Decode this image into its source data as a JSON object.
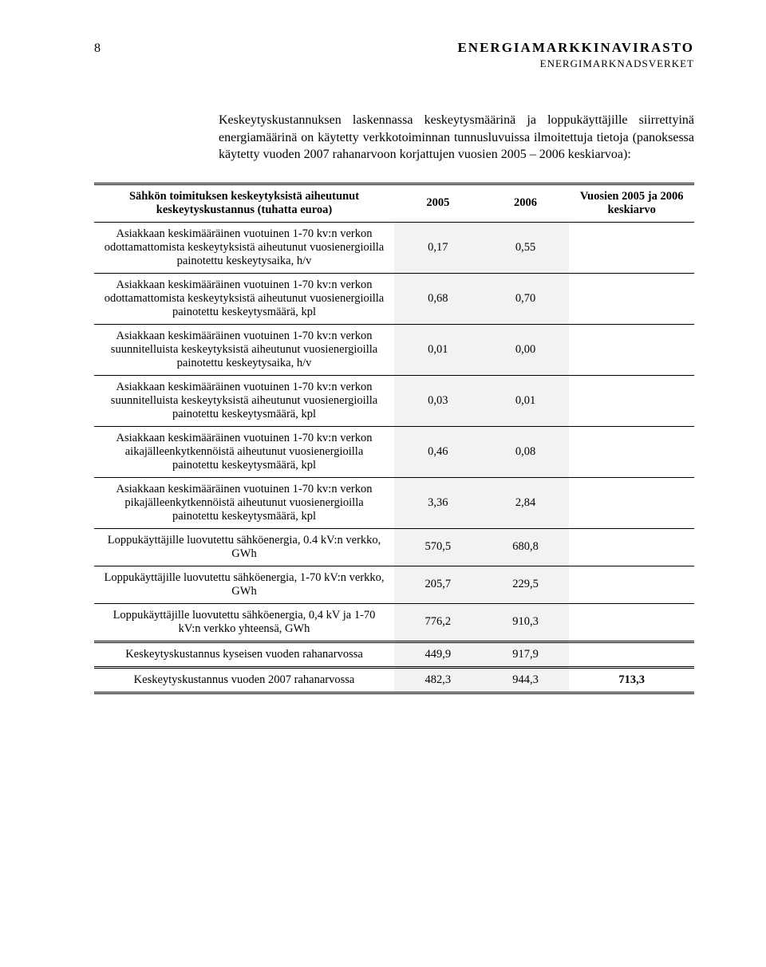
{
  "page_number": "8",
  "header_title": "ENERGIAMARKKINAVIRASTO",
  "header_sub": "ENERGIMARKNADSVERKET",
  "paragraph": "Keskeytyskustannuksen laskennassa keskeytysmäärinä ja loppukäyttäjille siirrettyinä energiamäärinä on käytetty verkkotoiminnan tunnusluvuissa ilmoitettuja tietoja (panoksessa käytetty vuoden 2007 rahanarvoon korjattujen vuosien 2005 – 2006 keskiarvoa):",
  "columns": {
    "c0": "Sähkön toimituksen keskeytyksistä aiheutunut keskeytyskustannus (tuhatta euroa)",
    "c1": "2005",
    "c2": "2006",
    "c3": "Vuosien 2005 ja 2006 keskiarvo"
  },
  "rows": [
    {
      "label": "Asiakkaan keskimääräinen vuotuinen 1-70 kv:n verkon odottamattomista keskeytyksistä aiheutunut vuosienergioilla painotettu keskeytysaika, h/v",
      "v1": "0,17",
      "v2": "0,55",
      "v3": ""
    },
    {
      "label": "Asiakkaan keskimääräinen vuotuinen 1-70 kv:n verkon odottamattomista keskeytyksistä aiheutunut vuosienergioilla painotettu keskeytysmäärä, kpl",
      "v1": "0,68",
      "v2": "0,70",
      "v3": ""
    },
    {
      "label": "Asiakkaan keskimääräinen vuotuinen 1-70 kv:n verkon suunnitelluista keskeytyksistä aiheutunut vuosienergioilla painotettu keskeytysaika, h/v",
      "v1": "0,01",
      "v2": "0,00",
      "v3": ""
    },
    {
      "label": "Asiakkaan keskimääräinen vuotuinen 1-70 kv:n verkon suunnitelluista keskeytyksistä aiheutunut vuosienergioilla painotettu keskeytysmäärä, kpl",
      "v1": "0,03",
      "v2": "0,01",
      "v3": ""
    },
    {
      "label": "Asiakkaan keskimääräinen vuotuinen 1-70 kv:n verkon aikajälleenkytkennöistä aiheutunut vuosienergioilla painotettu keskeytysmäärä, kpl",
      "v1": "0,46",
      "v2": "0,08",
      "v3": ""
    },
    {
      "label": "Asiakkaan keskimääräinen vuotuinen 1-70 kv:n verkon pikajälleenkytkennöistä aiheutunut vuosienergioilla painotettu keskeytysmäärä, kpl",
      "v1": "3,36",
      "v2": "2,84",
      "v3": ""
    },
    {
      "label": "Loppukäyttäjille luovutettu sähköenergia, 0.4 kV:n verkko, GWh",
      "v1": "570,5",
      "v2": "680,8",
      "v3": ""
    },
    {
      "label": "Loppukäyttäjille luovutettu sähköenergia, 1-70 kV:n verkko, GWh",
      "v1": "205,7",
      "v2": "229,5",
      "v3": ""
    },
    {
      "label": "Loppukäyttäjille luovutettu sähköenergia, 0,4 kV ja 1-70 kV:n verkko yhteensä, GWh",
      "v1": "776,2",
      "v2": "910,3",
      "v3": ""
    },
    {
      "label": "Keskeytyskustannus kyseisen vuoden rahanarvossa",
      "v1": "449,9",
      "v2": "917,9",
      "v3": ""
    },
    {
      "label": "Keskeytyskustannus vuoden 2007 rahanarvossa",
      "v1": "482,3",
      "v2": "944,3",
      "v3": "713,3"
    }
  ],
  "style": {
    "background": "#ffffff",
    "text_color": "#000000",
    "shade": "#f2f2f2",
    "border": "#000000",
    "font_body_pt": 16,
    "font_table_pt": 14.5
  }
}
